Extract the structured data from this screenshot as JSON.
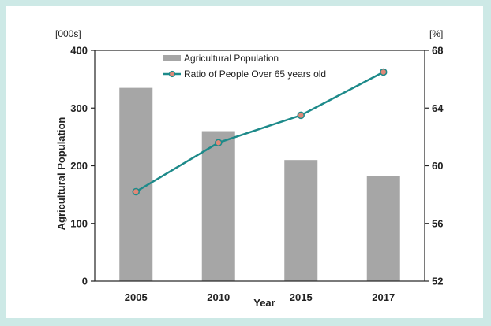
{
  "chart_data": {
    "type": "bar+line",
    "title": "",
    "xlabel": "Year",
    "ylabel_left": "Agricultural Population",
    "unit_left": "[000s]",
    "unit_right": "[%]",
    "categories": [
      "2005",
      "2010",
      "2015",
      "2017"
    ],
    "ylim_left": [
      0,
      400
    ],
    "yticks_left": [
      "0",
      "100",
      "200",
      "300",
      "400"
    ],
    "ylim_right": [
      52,
      68
    ],
    "yticks_right": [
      "52",
      "56",
      "60",
      "64",
      "68"
    ],
    "series": [
      {
        "name": "Agricultural Population",
        "type": "bar",
        "axis": "left",
        "values": [
          335,
          260,
          210,
          182
        ],
        "color": "#a6a6a6"
      },
      {
        "name": "Ratio of People Over 65 years old",
        "type": "line",
        "axis": "right",
        "values": [
          58.2,
          61.6,
          63.5,
          66.5
        ],
        "color": "#1d8a8a"
      }
    ],
    "legend_position": "top-center",
    "grid": false
  }
}
